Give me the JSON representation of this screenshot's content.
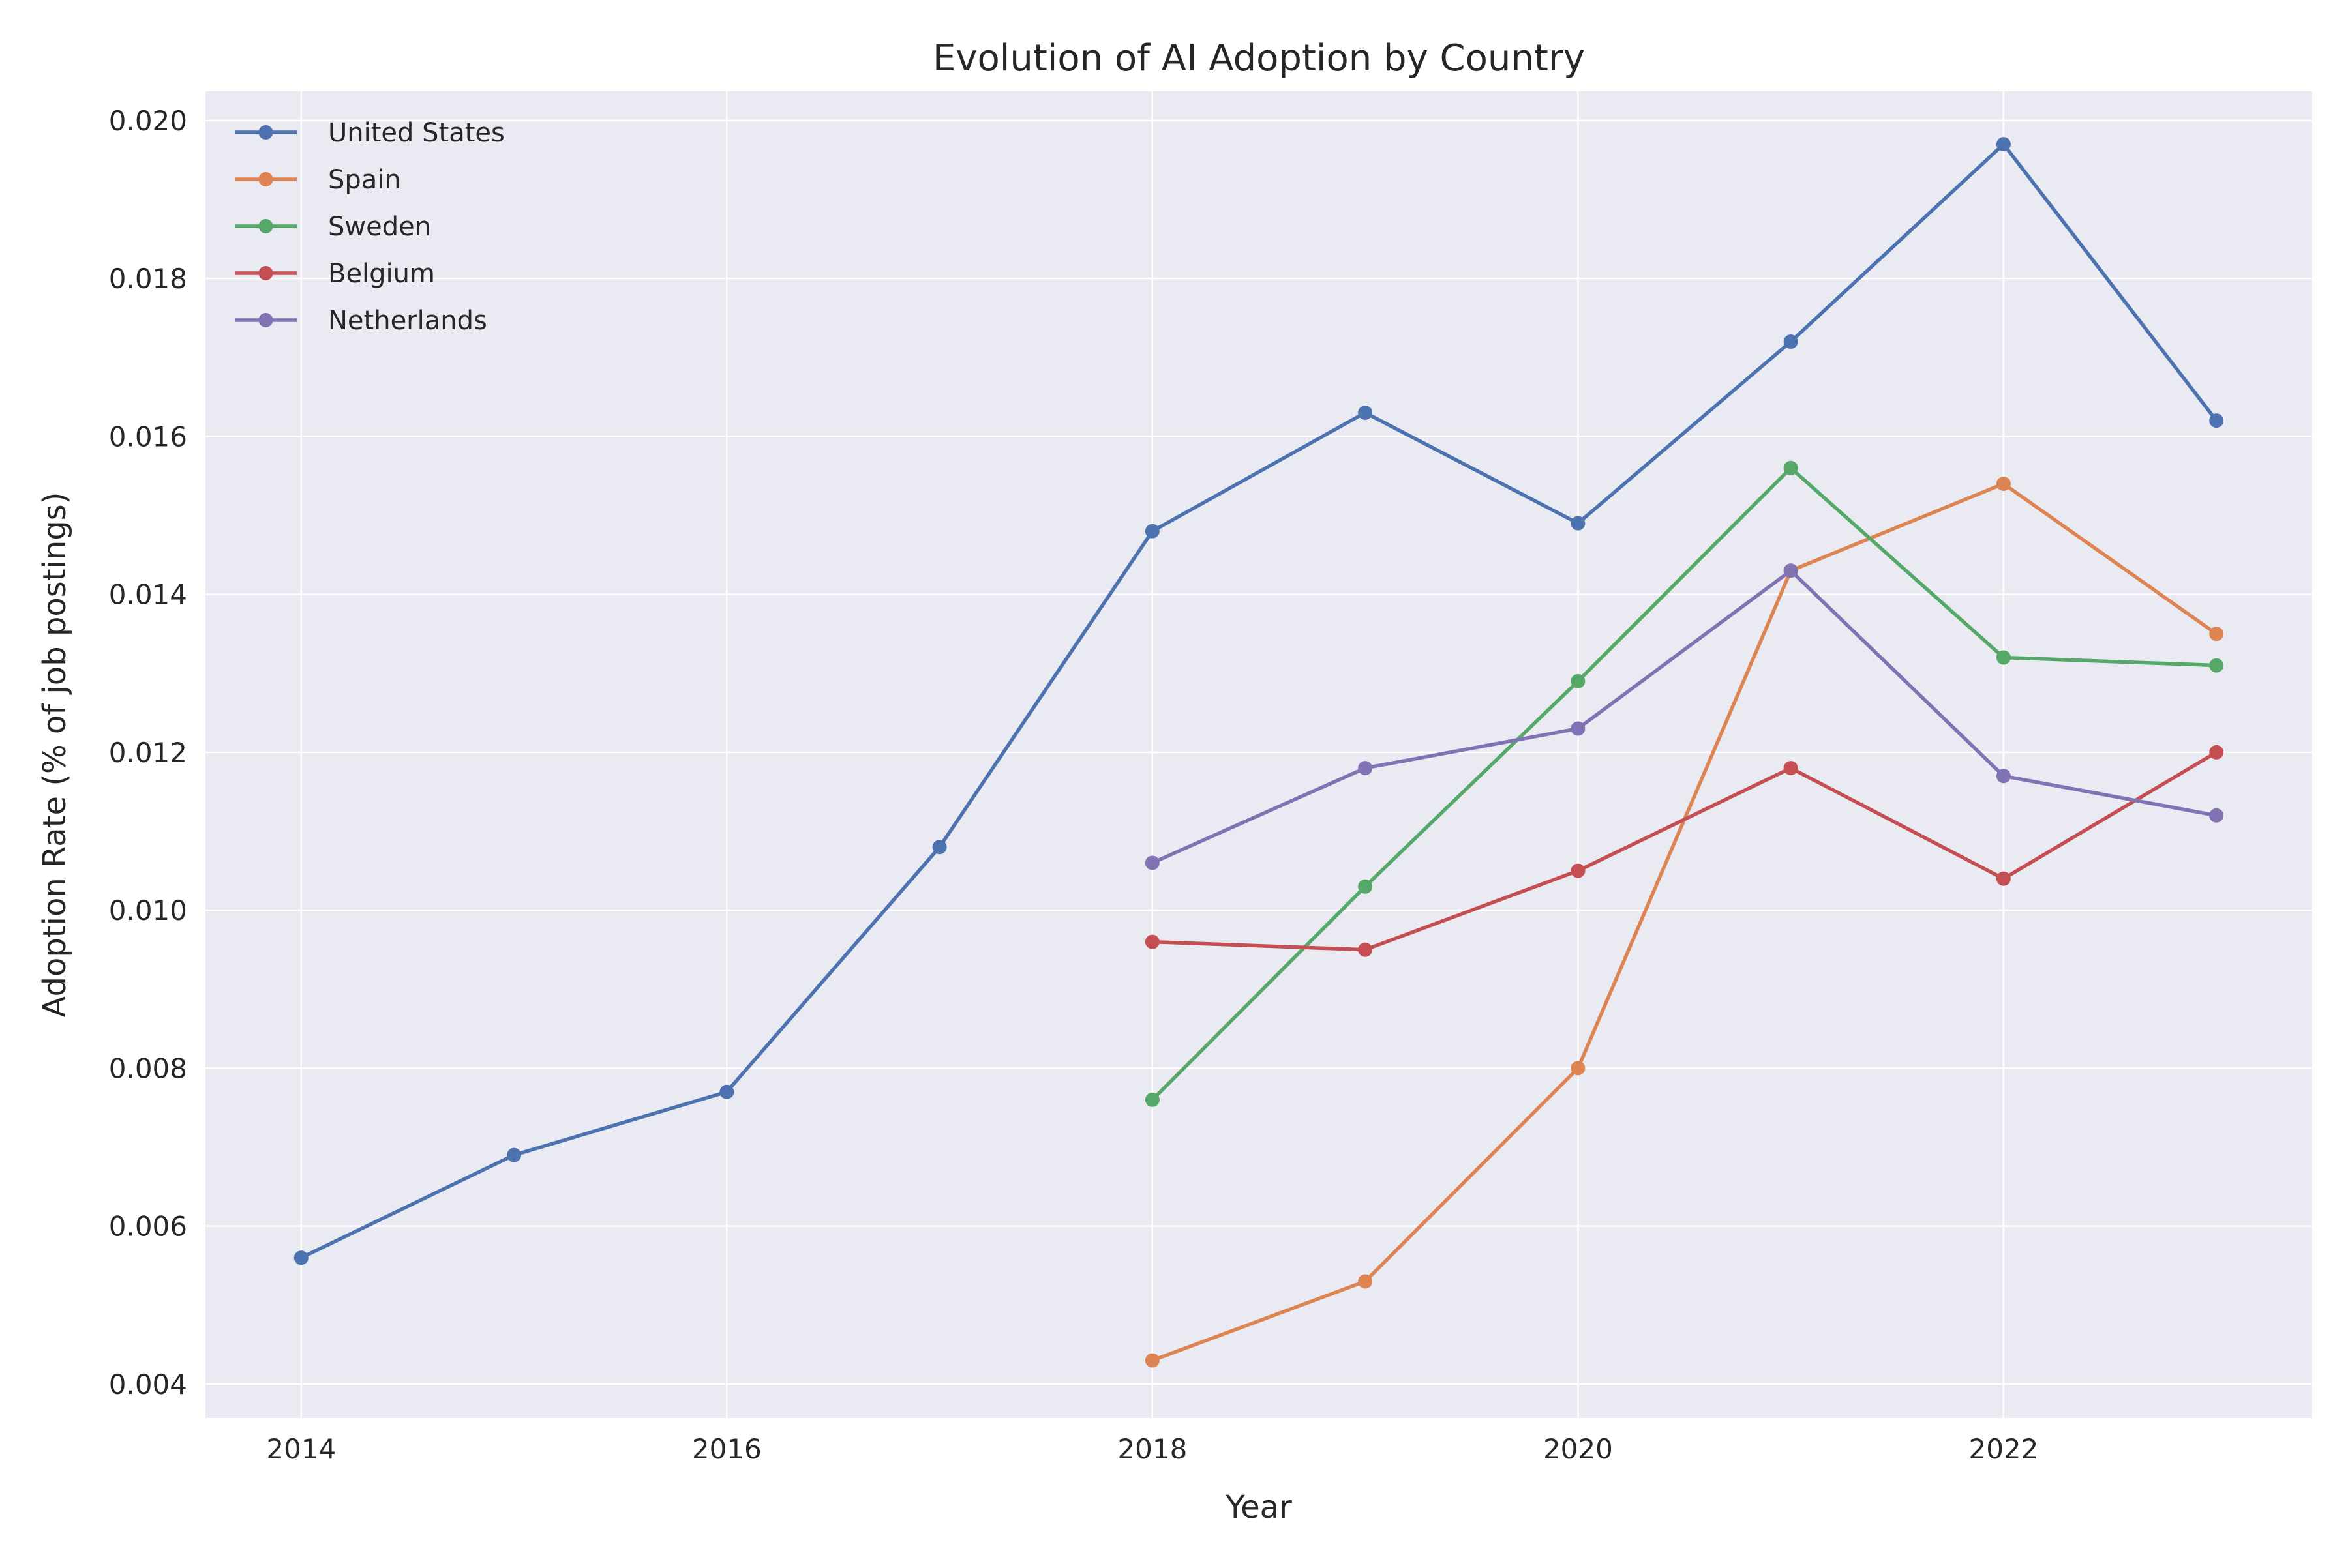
{
  "chart_data": {
    "type": "line",
    "title": "Evolution of AI Adoption by Country",
    "xlabel": "Year",
    "ylabel": "Adoption Rate (% of job postings)",
    "xlim": [
      2013.55,
      2023.45
    ],
    "ylim": [
      0.00357,
      0.02037
    ],
    "x_ticks": [
      "2014",
      "2016",
      "2018",
      "2020",
      "2022"
    ],
    "y_ticks": [
      "0.004",
      "0.006",
      "0.008",
      "0.010",
      "0.012",
      "0.014",
      "0.016",
      "0.018",
      "0.020"
    ],
    "grid": true,
    "legend_position": "top-left",
    "background": "#eaeaf2",
    "series": [
      {
        "name": "United States",
        "color": "#4c72b0",
        "x": [
          2014,
          2015,
          2016,
          2017,
          2018,
          2019,
          2020,
          2021,
          2022,
          2023
        ],
        "values": [
          0.0056,
          0.0069,
          0.0077,
          0.0108,
          0.0148,
          0.0163,
          0.0149,
          0.0172,
          0.0197,
          0.0162
        ]
      },
      {
        "name": "Spain",
        "color": "#dd8452",
        "x": [
          2018,
          2019,
          2020,
          2021,
          2022,
          2023
        ],
        "values": [
          0.0043,
          0.0053,
          0.008,
          0.0143,
          0.0154,
          0.0135
        ]
      },
      {
        "name": "Sweden",
        "color": "#55a868",
        "x": [
          2018,
          2019,
          2020,
          2021,
          2022,
          2023
        ],
        "values": [
          0.0076,
          0.0103,
          0.0129,
          0.0156,
          0.0132,
          0.0131
        ]
      },
      {
        "name": "Belgium",
        "color": "#c44e52",
        "x": [
          2018,
          2019,
          2020,
          2021,
          2022,
          2023
        ],
        "values": [
          0.0096,
          0.0095,
          0.0105,
          0.0118,
          0.0104,
          0.012
        ]
      },
      {
        "name": "Netherlands",
        "color": "#8172b3",
        "x": [
          2018,
          2019,
          2020,
          2021,
          2022,
          2023
        ],
        "values": [
          0.0106,
          0.0118,
          0.0123,
          0.0143,
          0.0117,
          0.0112
        ]
      }
    ]
  }
}
